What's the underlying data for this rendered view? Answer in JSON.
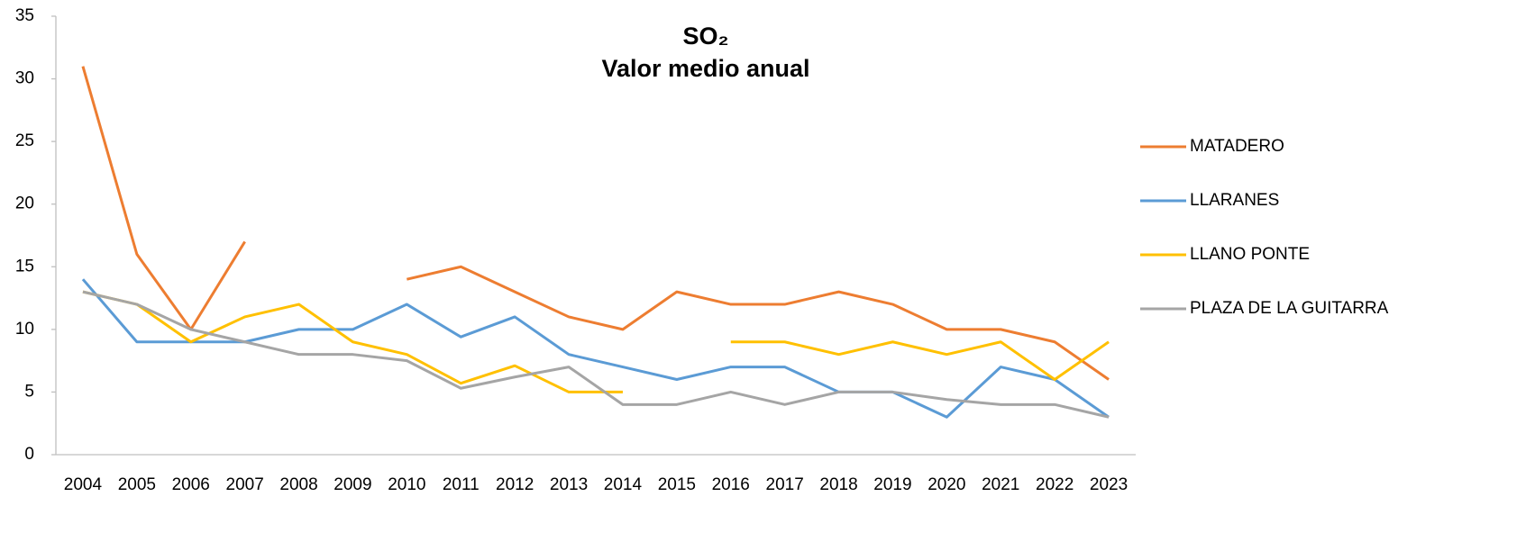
{
  "chart_data": {
    "type": "line",
    "title": [
      "SO₂",
      "Valor medio anual"
    ],
    "categories": [
      "2004",
      "2005",
      "2006",
      "2007",
      "2008",
      "2009",
      "2010",
      "2011",
      "2012",
      "2013",
      "2014",
      "2015",
      "2016",
      "2017",
      "2018",
      "2019",
      "2020",
      "2021",
      "2022",
      "2023"
    ],
    "series": [
      {
        "name": "MATADERO",
        "color": "#ed7d31",
        "values": [
          31,
          16,
          10,
          17,
          null,
          null,
          14,
          15,
          13,
          11,
          10,
          13,
          12,
          12,
          13,
          12,
          10,
          10,
          9,
          6
        ]
      },
      {
        "name": "LLARANES",
        "color": "#5b9bd5",
        "values": [
          14,
          9,
          9,
          9,
          10,
          10,
          12,
          9.4,
          11,
          8,
          7,
          6,
          7,
          7,
          5,
          5,
          3,
          7,
          6,
          3
        ]
      },
      {
        "name": "LLANO PONTE",
        "color": "#ffc000",
        "values": [
          13,
          12,
          9,
          11,
          12,
          9,
          8,
          5.7,
          7.1,
          5,
          5,
          null,
          9,
          9,
          8,
          9,
          8,
          9,
          6,
          9
        ]
      },
      {
        "name": "PLAZA DE LA GUITARRA",
        "color": "#a5a5a5",
        "values": [
          13,
          12,
          10,
          9,
          8,
          8,
          7.5,
          5.3,
          6.2,
          7,
          4,
          4,
          5,
          4,
          5,
          5,
          4.4,
          4,
          4,
          3
        ]
      }
    ],
    "ylim": [
      0,
      35
    ],
    "yticks": [
      0,
      5,
      10,
      15,
      20,
      25,
      30,
      35
    ],
    "grid": false,
    "legend": "right"
  }
}
